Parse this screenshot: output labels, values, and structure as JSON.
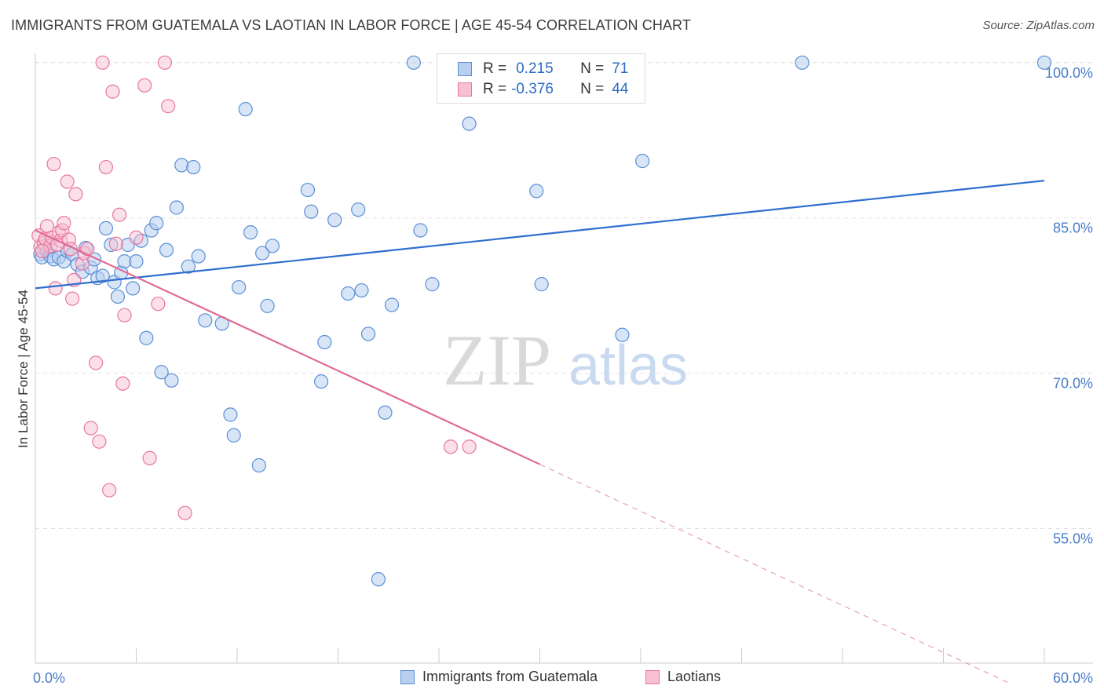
{
  "title": "IMMIGRANTS FROM GUATEMALA VS LAOTIAN IN LABOR FORCE | AGE 45-54 CORRELATION CHART",
  "source": "Source: ZipAtlas.com",
  "watermark": {
    "zip": "ZIP",
    "atlas": "atlas"
  },
  "legend": {
    "rows": [
      {
        "r_label": "R =",
        "r_value": "0.215",
        "n_label": "N =",
        "n_value": "71"
      },
      {
        "r_label": "R =",
        "r_value": "-0.376",
        "n_label": "N =",
        "n_value": "44"
      }
    ]
  },
  "colors": {
    "blue": "#5b8fd6",
    "blue_fill": "#b8cff0",
    "pink": "#e8779d",
    "pink_fill": "#f7c1d3",
    "axis_text": "#4a7cc7"
  },
  "chart_data": {
    "type": "scatter",
    "title": "IMMIGRANTS FROM GUATEMALA VS LAOTIAN IN LABOR FORCE | AGE 45-54 CORRELATION CHART",
    "xlabel": "",
    "ylabel": "In Labor Force | Age 45-54",
    "xlim": [
      0,
      60
    ],
    "ylim": [
      42,
      101.5
    ],
    "x_tick_labels": [
      "0.0%",
      "60.0%"
    ],
    "y_ticks": [
      55,
      70,
      85,
      100
    ],
    "y_tick_labels": [
      "55.0%",
      "70.0%",
      "85.0%",
      "100.0%"
    ],
    "grid": true,
    "legend_position": "bottom",
    "series": [
      {
        "name": "Immigrants from Guatemala",
        "color": "#5b8fd6",
        "trend": {
          "x": [
            0,
            60
          ],
          "y": [
            78.2,
            88.6
          ]
        },
        "points": [
          [
            0.3,
            81.5
          ],
          [
            0.4,
            81.2
          ],
          [
            0.6,
            82.3
          ],
          [
            0.7,
            81.8
          ],
          [
            0.9,
            81.3
          ],
          [
            1.1,
            81.0
          ],
          [
            1.4,
            81.2
          ],
          [
            1.7,
            80.8
          ],
          [
            1.9,
            81.8
          ],
          [
            2.2,
            81.5
          ],
          [
            2.5,
            80.5
          ],
          [
            2.8,
            79.8
          ],
          [
            3.0,
            82.1
          ],
          [
            3.3,
            80.2
          ],
          [
            3.5,
            81.0
          ],
          [
            3.7,
            79.2
          ],
          [
            4.0,
            79.4
          ],
          [
            4.2,
            84.0
          ],
          [
            4.5,
            82.4
          ],
          [
            4.7,
            78.8
          ],
          [
            4.9,
            77.4
          ],
          [
            5.1,
            79.7
          ],
          [
            5.3,
            80.8
          ],
          [
            5.5,
            82.4
          ],
          [
            5.8,
            78.2
          ],
          [
            6.0,
            80.8
          ],
          [
            6.3,
            82.8
          ],
          [
            6.6,
            73.4
          ],
          [
            6.9,
            83.8
          ],
          [
            7.2,
            84.5
          ],
          [
            7.5,
            70.1
          ],
          [
            7.8,
            81.9
          ],
          [
            8.1,
            69.3
          ],
          [
            8.4,
            86.0
          ],
          [
            8.7,
            90.1
          ],
          [
            9.1,
            80.3
          ],
          [
            9.4,
            89.9
          ],
          [
            9.7,
            81.3
          ],
          [
            10.1,
            75.1
          ],
          [
            11.1,
            74.8
          ],
          [
            11.6,
            66.0
          ],
          [
            11.8,
            64.0
          ],
          [
            12.1,
            78.3
          ],
          [
            12.5,
            95.5
          ],
          [
            12.8,
            83.6
          ],
          [
            13.3,
            61.1
          ],
          [
            13.5,
            81.6
          ],
          [
            13.8,
            76.5
          ],
          [
            14.1,
            82.3
          ],
          [
            16.2,
            87.7
          ],
          [
            16.4,
            85.6
          ],
          [
            17.0,
            69.2
          ],
          [
            17.2,
            73.0
          ],
          [
            17.8,
            84.8
          ],
          [
            18.6,
            77.7
          ],
          [
            19.2,
            85.8
          ],
          [
            19.4,
            78.0
          ],
          [
            19.8,
            73.8
          ],
          [
            20.4,
            50.1
          ],
          [
            20.8,
            66.2
          ],
          [
            21.2,
            76.6
          ],
          [
            22.5,
            100.0
          ],
          [
            22.9,
            83.8
          ],
          [
            23.6,
            78.6
          ],
          [
            25.8,
            94.1
          ],
          [
            29.8,
            87.6
          ],
          [
            30.1,
            78.6
          ],
          [
            34.9,
            73.7
          ],
          [
            36.1,
            90.5
          ],
          [
            45.6,
            100.0
          ],
          [
            60.0,
            100.0
          ]
        ]
      },
      {
        "name": "Laotians",
        "color": "#e8779d",
        "trend": {
          "x": [
            0,
            30
          ],
          "y": [
            83.8,
            61.2
          ]
        },
        "trend_dashed": {
          "x": [
            30,
            58
          ],
          "y": [
            61.2,
            40.0
          ]
        },
        "points": [
          [
            0.2,
            83.3
          ],
          [
            0.3,
            82.2
          ],
          [
            0.5,
            82.6
          ],
          [
            0.6,
            83.0
          ],
          [
            0.7,
            84.2
          ],
          [
            0.9,
            82.3
          ],
          [
            1.0,
            83.1
          ],
          [
            1.1,
            90.2
          ],
          [
            1.2,
            78.2
          ],
          [
            1.4,
            83.6
          ],
          [
            1.5,
            82.8
          ],
          [
            1.6,
            83.8
          ],
          [
            1.7,
            84.5
          ],
          [
            1.9,
            88.5
          ],
          [
            2.0,
            82.9
          ],
          [
            2.1,
            82.0
          ],
          [
            2.2,
            77.2
          ],
          [
            2.3,
            79.0
          ],
          [
            2.4,
            87.3
          ],
          [
            2.8,
            80.6
          ],
          [
            2.9,
            81.6
          ],
          [
            3.1,
            82.0
          ],
          [
            3.3,
            64.7
          ],
          [
            3.6,
            71.0
          ],
          [
            3.8,
            63.4
          ],
          [
            4.0,
            100.0
          ],
          [
            4.2,
            89.9
          ],
          [
            4.4,
            58.7
          ],
          [
            4.6,
            97.2
          ],
          [
            4.8,
            82.5
          ],
          [
            5.0,
            85.3
          ],
          [
            5.2,
            69.0
          ],
          [
            5.3,
            75.6
          ],
          [
            6.0,
            83.1
          ],
          [
            6.5,
            97.8
          ],
          [
            6.8,
            61.8
          ],
          [
            7.3,
            76.7
          ],
          [
            7.7,
            100.0
          ],
          [
            7.9,
            95.8
          ],
          [
            8.9,
            56.5
          ],
          [
            24.7,
            62.9
          ],
          [
            25.8,
            62.9
          ],
          [
            0.4,
            81.8
          ],
          [
            1.3,
            82.4
          ]
        ]
      }
    ]
  }
}
